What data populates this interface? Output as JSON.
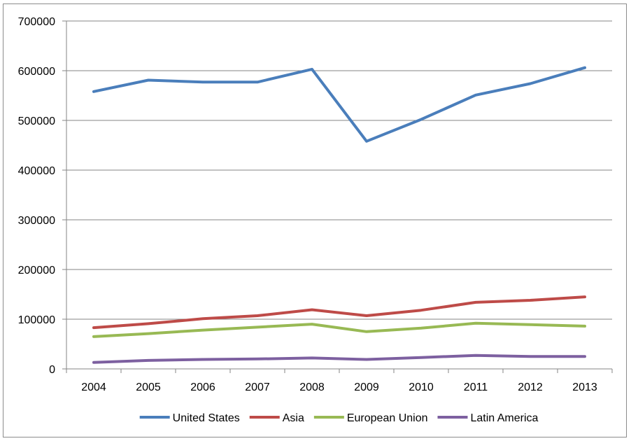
{
  "chart_data": {
    "type": "line",
    "title": "",
    "xlabel": "",
    "ylabel": "",
    "categories": [
      "2004",
      "2005",
      "2006",
      "2007",
      "2008",
      "2009",
      "2010",
      "2011",
      "2012",
      "2013"
    ],
    "ylim": [
      0,
      700000
    ],
    "yticks": [
      0,
      100000,
      200000,
      300000,
      400000,
      500000,
      600000,
      700000
    ],
    "ytick_labels": [
      "0",
      "100000",
      "200000",
      "300000",
      "400000",
      "500000",
      "600000",
      "700000"
    ],
    "grid": "horizontal",
    "legend_position": "bottom",
    "series": [
      {
        "name": "United States",
        "color": "#4a7ebb",
        "values": [
          558000,
          581000,
          577000,
          577000,
          603000,
          458000,
          502000,
          551000,
          574000,
          606000
        ]
      },
      {
        "name": "Asia",
        "color": "#be4b48",
        "values": [
          83000,
          91000,
          101000,
          107000,
          119000,
          107000,
          118000,
          134000,
          138000,
          145000
        ]
      },
      {
        "name": "European Union",
        "color": "#98b954",
        "values": [
          65000,
          71000,
          78000,
          84000,
          90000,
          75000,
          82000,
          92000,
          89000,
          86000
        ]
      },
      {
        "name": "Latin America",
        "color": "#7d60a0",
        "values": [
          13000,
          17000,
          19000,
          20000,
          22000,
          19000,
          23000,
          27000,
          25000,
          25000
        ]
      }
    ]
  }
}
